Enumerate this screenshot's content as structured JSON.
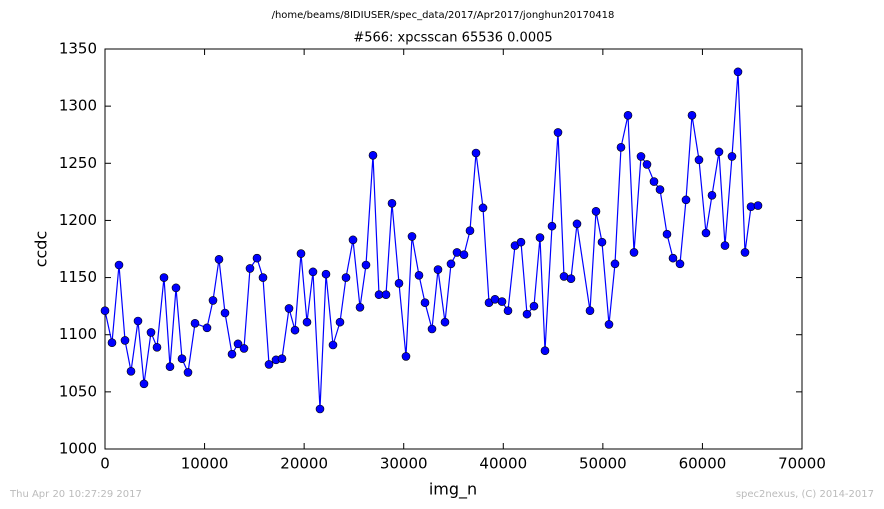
{
  "chart_data": {
    "type": "line",
    "suptitle": "/home/beams/8IDIUSER/spec_data/2017/Apr2017/jonghun20170418",
    "title": "#566: xpcsscan 65536 0.0005",
    "xlabel": "img_n",
    "ylabel": "ccdc",
    "footer_left": "Thu Apr 20 10:27:29 2017",
    "footer_right": "spec2nexus, (C) 2014-2017",
    "color": "#0000ff",
    "xlim": [
      0,
      70000
    ],
    "xticks": [
      0,
      10000,
      20000,
      30000,
      40000,
      50000,
      60000,
      70000
    ],
    "ylim": [
      1000,
      1350
    ],
    "yticks": [
      1000,
      1050,
      1100,
      1150,
      1200,
      1250,
      1300,
      1350
    ],
    "x": [
      0,
      703,
      1406,
      2009,
      2611,
      3314,
      3917,
      4620,
      5222,
      5925,
      6528,
      7131,
      7733,
      8336,
      9039,
      10244,
      10846,
      11449,
      12052,
      12755,
      13357,
      13960,
      14562,
      15265,
      15868,
      16471,
      17174,
      17776,
      18479,
      19082,
      19684,
      20287,
      20889,
      21592,
      22195,
      22898,
      23601,
      24204,
      24907,
      25610,
      26212,
      26915,
      27518,
      28221,
      28823,
      29526,
      30229,
      30832,
      31535,
      32138,
      32841,
      33443,
      34146,
      34749,
      35351,
      36054,
      36657,
      37260,
      37963,
      38565,
      39168,
      39871,
      40473,
      41176,
      41779,
      42381,
      43084,
      43687,
      44189,
      44892,
      45495,
      46098,
      46801,
      47403,
      48709,
      49312,
      49914,
      50617,
      51219,
      51822,
      52525,
      53128,
      53831,
      54433,
      55136,
      55739,
      56442,
      57044,
      57747,
      58350,
      58952,
      59655,
      60358,
      60961,
      61664,
      62266,
      62969,
      63572,
      64275,
      64878,
      65581
    ],
    "values": [
      1121,
      1093,
      1161,
      1095,
      1068,
      1112,
      1057,
      1102,
      1089,
      1150,
      1072,
      1141,
      1079,
      1067,
      1110,
      1106,
      1130,
      1166,
      1119,
      1083,
      1092,
      1088,
      1158,
      1167,
      1150,
      1074,
      1078,
      1079,
      1123,
      1104,
      1171,
      1111,
      1155,
      1035,
      1153,
      1091,
      1111,
      1150,
      1183,
      1124,
      1161,
      1257,
      1135,
      1135,
      1215,
      1145,
      1081,
      1186,
      1152,
      1128,
      1105,
      1157,
      1111,
      1162,
      1172,
      1170,
      1191,
      1259,
      1211,
      1128,
      1131,
      1129,
      1121,
      1178,
      1181,
      1118,
      1125,
      1185,
      1086,
      1195,
      1277,
      1151,
      1149,
      1197,
      1121,
      1208,
      1181,
      1109,
      1162,
      1264,
      1292,
      1172,
      1256,
      1249,
      1234,
      1227,
      1188,
      1167,
      1162,
      1218,
      1292,
      1253,
      1189,
      1222,
      1260,
      1178,
      1256,
      1330,
      1172,
      1212,
      1213
    ]
  }
}
